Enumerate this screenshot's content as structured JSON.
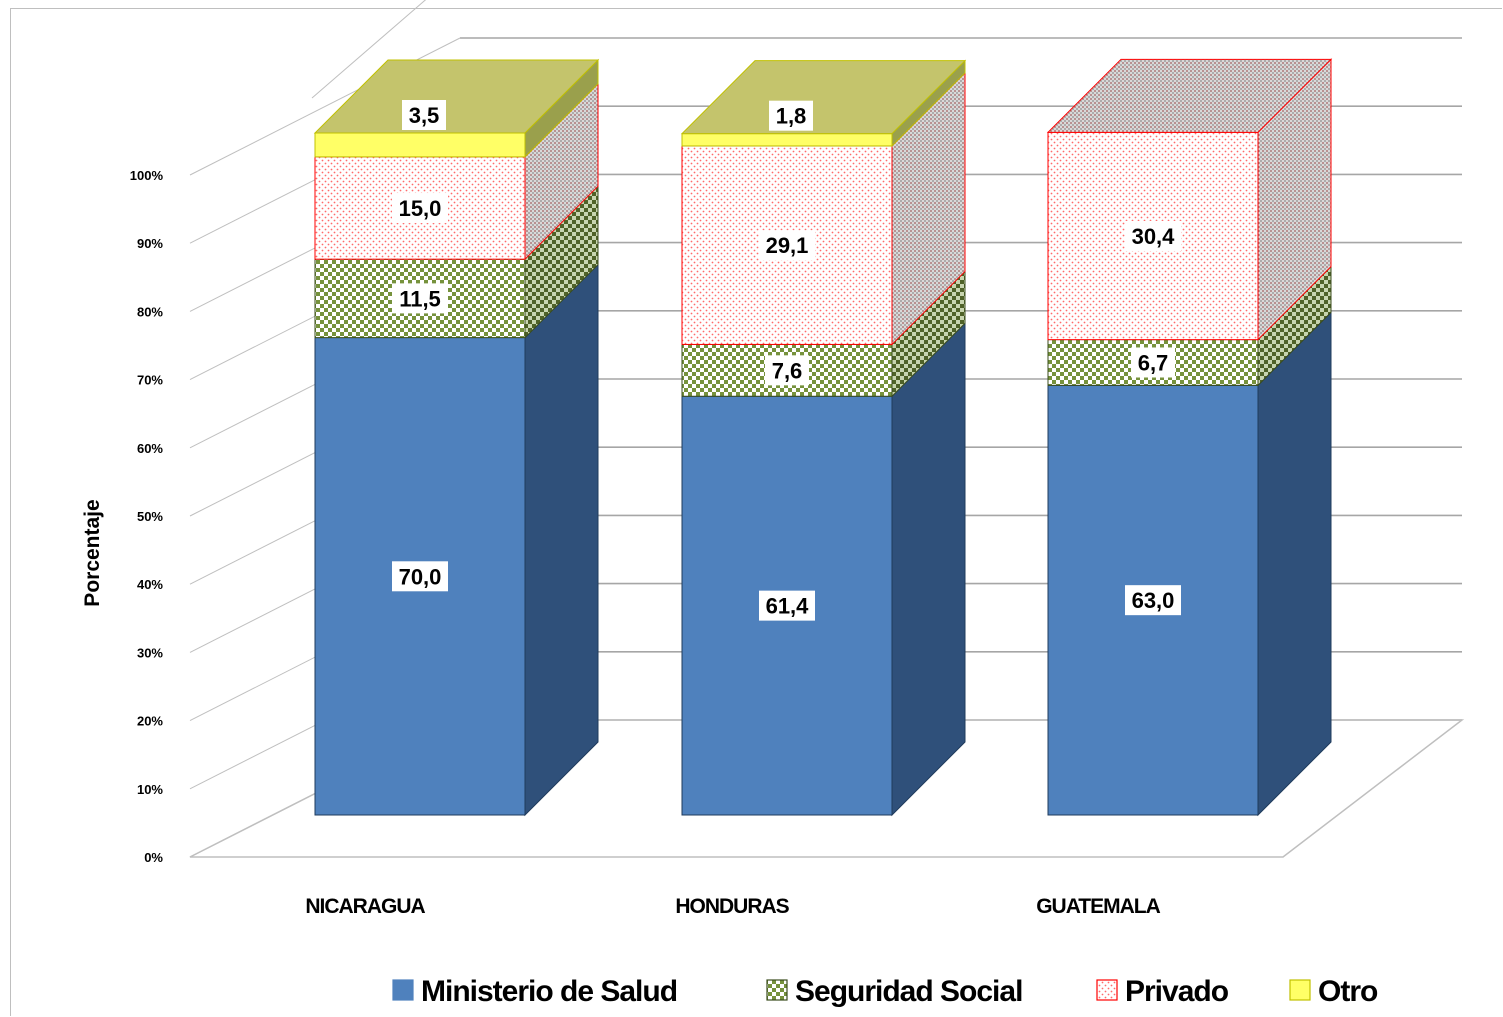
{
  "chart_data": {
    "type": "bar",
    "stacked": true,
    "three_d": true,
    "title": "",
    "xlabel": "",
    "ylabel": "Porcentaje",
    "ylim": [
      0,
      100
    ],
    "yticks": [
      "0%",
      "10%",
      "20%",
      "30%",
      "40%",
      "50%",
      "60%",
      "70%",
      "80%",
      "90%",
      "100%"
    ],
    "grid": true,
    "legend_position": "bottom",
    "categories": [
      "NICARAGUA",
      "HONDURAS",
      "GUATEMALA"
    ],
    "series": [
      {
        "name": "Ministerio de Salud",
        "values": [
          70.0,
          61.4,
          63.0
        ],
        "labels": [
          "70,0",
          "61,4",
          "63,0"
        ],
        "color": "#4f81bd",
        "pattern": "solid"
      },
      {
        "name": "Seguridad Social",
        "values": [
          11.5,
          7.6,
          6.7
        ],
        "labels": [
          "11,5",
          "7,6",
          "6,7"
        ],
        "color": "#76923c",
        "pattern": "checker"
      },
      {
        "name": "Privado",
        "values": [
          15.0,
          29.1,
          30.4
        ],
        "labels": [
          "15,0",
          "29,1",
          "30,4"
        ],
        "color": "#ff0000",
        "pattern": "dots"
      },
      {
        "name": "Otro",
        "values": [
          3.5,
          1.8,
          0
        ],
        "labels": [
          "3,5",
          "1,8",
          ""
        ],
        "color": "#ffff66",
        "pattern": "solid"
      }
    ]
  }
}
